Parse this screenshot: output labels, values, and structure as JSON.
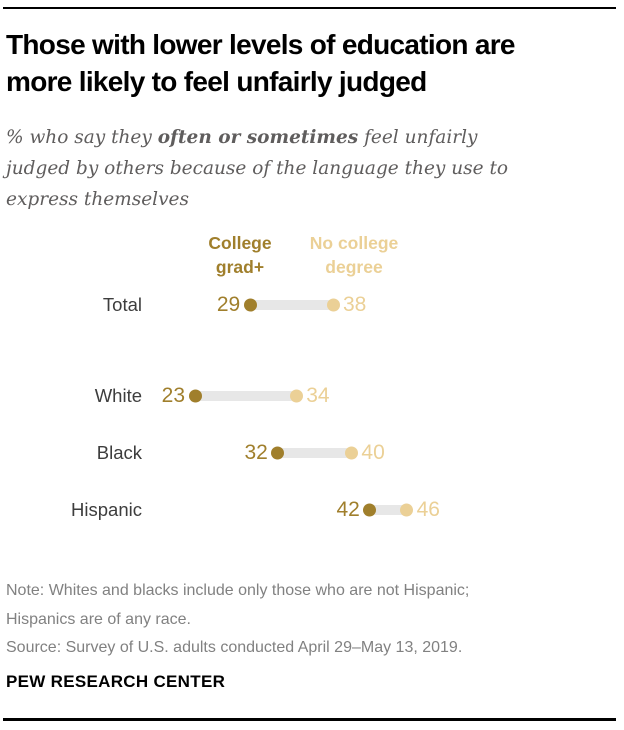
{
  "page": {
    "title_line1": "Those with lower levels of education are",
    "title_line2": "more likely to feel unfairly judged",
    "subtitle": {
      "line1_pre": "% who say they ",
      "line1_bold": "often or sometimes",
      "line1_post": " feel unfairly",
      "line2": "judged by others because of the language they use to",
      "line3": "express themselves"
    },
    "note_line1": "Note: Whites and blacks include only those who are not Hispanic;",
    "note_line2": "Hispanics are of any race.",
    "source_line": "Source: Survey of U.S. adults conducted April 29–May 13, 2019.",
    "footer": "PEW RESEARCH CENTER"
  },
  "legend": {
    "series1_line1": "College",
    "series1_line2": "grad+",
    "series2_line1": "No college",
    "series2_line2": "degree"
  },
  "colors": {
    "college_grad": "#a07f2c",
    "no_college": "#ebd096",
    "connector": "#e7e7e7"
  },
  "chart_data": {
    "type": "scatter",
    "variant": "dumbbell-dot-plot",
    "title": "Those with lower levels of education are more likely to feel unfairly judged",
    "subtitle": "% who say they often or sometimes feel unfairly judged by others because of the language they use to express themselves",
    "categories": [
      "Total",
      "White",
      "Black",
      "Hispanic"
    ],
    "series": [
      {
        "name": "College grad+",
        "color": "#a07f2c",
        "values": [
          29,
          23,
          32,
          42
        ]
      },
      {
        "name": "No college degree",
        "color": "#ebd096",
        "values": [
          38,
          34,
          40,
          46
        ]
      }
    ],
    "xlabel": "",
    "ylabel": "",
    "xlim": [
      20,
      50
    ],
    "grid": false,
    "legend_position": "top",
    "value_labels": "shown beside each dot"
  }
}
